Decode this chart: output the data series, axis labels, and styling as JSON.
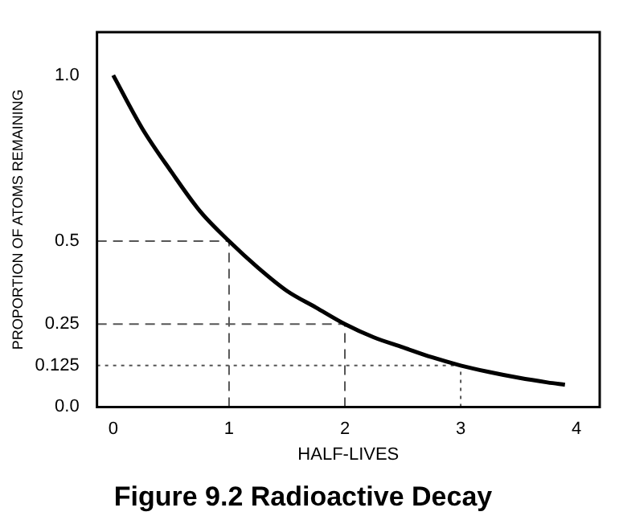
{
  "chart_data": {
    "type": "line",
    "title": "Figure 9.2 Radioactive Decay",
    "xlabel": "HALF-LIVES",
    "ylabel": "PROPORTION OF ATOMS REMAINING",
    "x": [
      0,
      0.25,
      0.5,
      0.75,
      1,
      1.25,
      1.5,
      1.75,
      2,
      2.25,
      2.5,
      2.75,
      3,
      3.25,
      3.5,
      3.75,
      3.9
    ],
    "values": [
      1,
      0.84,
      0.71,
      0.59,
      0.5,
      0.42,
      0.35,
      0.3,
      0.25,
      0.21,
      0.18,
      0.15,
      0.125,
      0.105,
      0.088,
      0.074,
      0.067
    ],
    "color": "#000000",
    "marker": "none",
    "line_style": "solid",
    "grid": false,
    "legend": false,
    "xlim": [
      -0.14,
      4.2
    ],
    "ylim": [
      0,
      1.13
    ],
    "xticks": [
      0,
      1,
      2,
      3,
      4
    ],
    "yticks": [
      {
        "value": 0,
        "label": "0.0"
      },
      0.125,
      0.25,
      0.5,
      {
        "value": 1,
        "label": "1.0"
      }
    ],
    "ref_lines": [
      {
        "axis": "y",
        "value": 0.5,
        "line_style": "dashed",
        "color": "#555555"
      },
      {
        "axis": "x",
        "value": 1,
        "line_style": "dashed",
        "color": "#555555"
      },
      {
        "axis": "y",
        "value": 0.25,
        "line_style": "dashed",
        "color": "#555555"
      },
      {
        "axis": "x",
        "value": 2,
        "line_style": "dashed",
        "color": "#555555"
      },
      {
        "axis": "y",
        "value": 0.125,
        "line_style": "dotted",
        "color": "#555555"
      },
      {
        "axis": "x",
        "value": 3,
        "line_style": "dotted",
        "color": "#555555"
      }
    ]
  }
}
